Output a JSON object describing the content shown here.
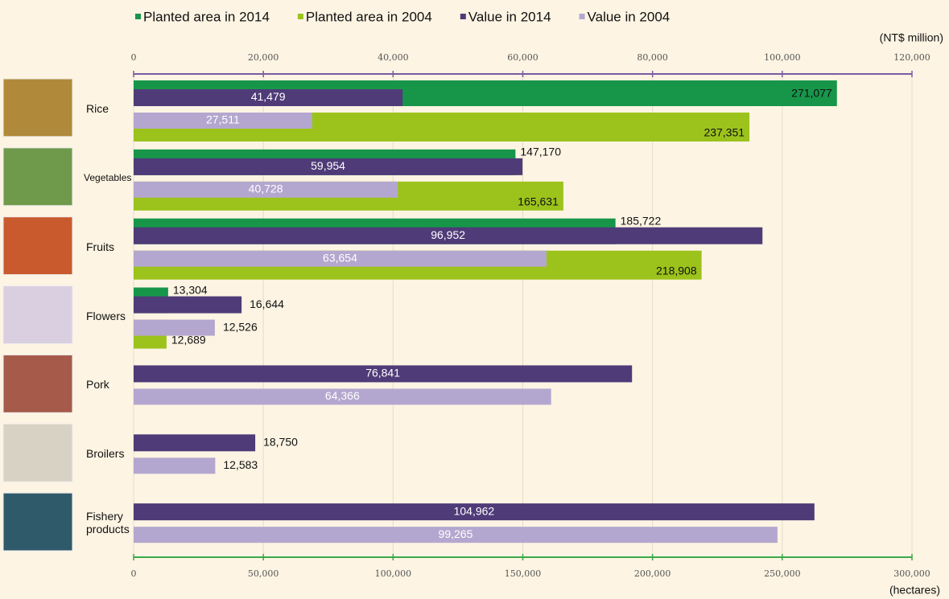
{
  "chart_data": {
    "type": "bar",
    "orientation": "horizontal",
    "categories": [
      "Rice",
      "Vegetables",
      "Fruits",
      "Flowers",
      "Pork",
      "Broilers",
      "Fishery products"
    ],
    "series": [
      {
        "name": "Planted area in 2014",
        "color": "#17964a",
        "axis": "x2",
        "values": [
          271077,
          147170,
          185722,
          13304,
          null,
          null,
          null
        ],
        "value_labels": [
          "271,077",
          "147,170",
          "185,722",
          "13,304",
          null,
          null,
          null
        ]
      },
      {
        "name": "Planted area in 2004",
        "color": "#9cc31c",
        "axis": "x2",
        "values": [
          237351,
          165631,
          218908,
          12689,
          null,
          null,
          null
        ],
        "value_labels": [
          "237,351",
          "165,631",
          "218,908",
          "12,689",
          null,
          null,
          null
        ]
      },
      {
        "name": "Value in 2014",
        "color": "#4f3b78",
        "axis": "x",
        "values": [
          41479,
          59954,
          96952,
          16644,
          76841,
          18750,
          104962
        ],
        "value_labels": [
          "41,479",
          "59,954",
          "96,952",
          "16,644",
          "76,841",
          "18,750",
          "104,962"
        ]
      },
      {
        "name": "Value in 2004",
        "color": "#b4a7cf",
        "axis": "x",
        "values": [
          27511,
          40728,
          63654,
          12526,
          64366,
          12583,
          99265
        ],
        "value_labels": [
          "27,511",
          "40,728",
          "63,654",
          "12,526",
          "64,366",
          "12,583",
          "99,265"
        ]
      }
    ],
    "x_label": "(NT$ million)",
    "xlim": [
      0,
      120000
    ],
    "xticks": [
      0,
      {
        "value": 20000,
        "label": "20,000"
      },
      {
        "value": 40000,
        "label": "40,000"
      },
      {
        "value": 60000,
        "label": "60,000"
      },
      {
        "value": 80000,
        "label": "80,000"
      },
      {
        "value": 100000,
        "label": "100,000"
      },
      {
        "value": 120000,
        "label": "120,000"
      }
    ],
    "x2_label": "(hectares)",
    "x2lim": [
      0,
      300000
    ],
    "x2ticks": [
      0,
      {
        "value": 50000,
        "label": "50,000"
      },
      {
        "value": 100000,
        "label": "100,000"
      },
      {
        "value": 150000,
        "label": "150,000"
      },
      {
        "value": 200000,
        "label": "200,000"
      },
      {
        "value": 250000,
        "label": "250,000"
      },
      {
        "value": 300000,
        "label": "300,000"
      }
    ],
    "grid": true,
    "legend": "top"
  }
}
